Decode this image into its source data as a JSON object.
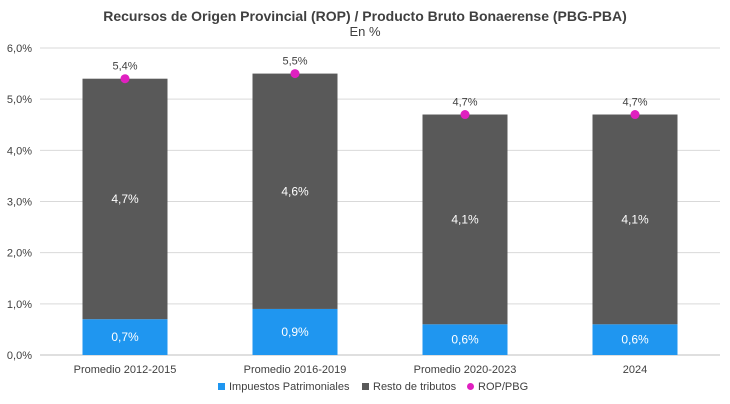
{
  "chart_data": {
    "type": "bar",
    "stacked": true,
    "title": "Recursos de Origen Provincial (ROP) / Producto Bruto Bonaerense (PBG-PBA)",
    "subtitle": "En %",
    "categories": [
      "Promedio 2012-2015",
      "Promedio 2016-2019",
      "Promedio 2020-2023",
      "2024"
    ],
    "ylim": [
      0,
      6
    ],
    "yticks": [
      "0,0%",
      "1,0%",
      "2,0%",
      "3,0%",
      "4,0%",
      "5,0%",
      "6,0%"
    ],
    "grid": true,
    "legend_position": "bottom",
    "series": [
      {
        "name": "Impuestos Patrimoniales",
        "kind": "bar",
        "color": "#1f96f0",
        "values": [
          0.7,
          0.9,
          0.6,
          0.6
        ],
        "labels": [
          "0,7%",
          "0,9%",
          "0,6%",
          "0,6%"
        ]
      },
      {
        "name": "Resto de tributos",
        "kind": "bar",
        "color": "#595959",
        "values": [
          4.7,
          4.6,
          4.1,
          4.1
        ],
        "labels": [
          "4,7%",
          "4,6%",
          "4,1%",
          "4,1%"
        ]
      },
      {
        "name": "ROP/PBG",
        "kind": "marker",
        "color": "#e020c0",
        "values": [
          5.4,
          5.5,
          4.7,
          4.7
        ],
        "labels": [
          "5,4%",
          "5,5%",
          "4,7%",
          "4,7%"
        ]
      }
    ]
  }
}
